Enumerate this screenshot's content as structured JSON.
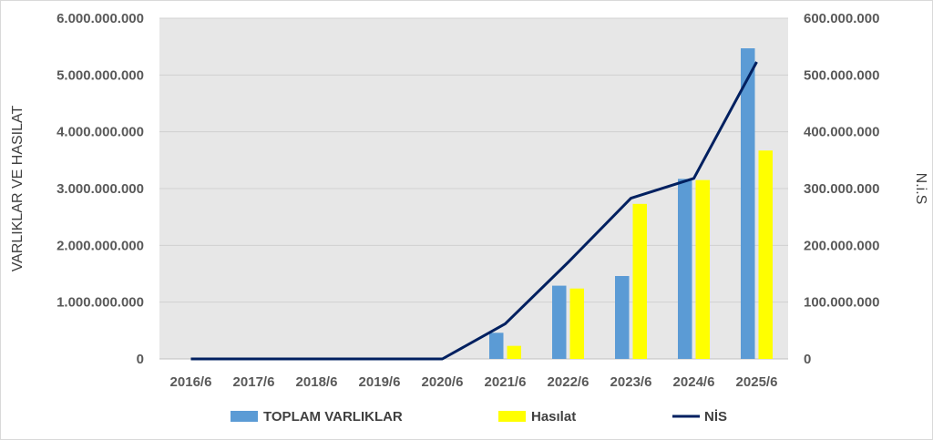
{
  "chart_data": {
    "type": "bar",
    "categories": [
      "2016/6",
      "2017/6",
      "2018/6",
      "2019/6",
      "2020/6",
      "2021/6",
      "2022/6",
      "2023/6",
      "2024/6",
      "2025/6"
    ],
    "series": [
      {
        "name": "TOPLAM VARLIKLAR",
        "type": "bar",
        "axis": "left",
        "color": "#5B9BD5",
        "values": [
          0,
          0,
          0,
          0,
          0,
          460000000,
          1290000000,
          1460000000,
          3170000000,
          5470000000
        ]
      },
      {
        "name": "Hasılat",
        "type": "bar",
        "axis": "left",
        "color": "#FFFF00",
        "values": [
          0,
          0,
          0,
          0,
          0,
          230000000,
          1240000000,
          2730000000,
          3150000000,
          3670000000
        ]
      },
      {
        "name": "NİS",
        "type": "line",
        "axis": "right",
        "color": "#002060",
        "values": [
          0,
          0,
          0,
          0,
          0,
          62000000,
          170000000,
          283000000,
          318000000,
          523000000
        ]
      }
    ],
    "ylabel": "VARLIKLAR VE HASILAT",
    "y2label": "N.i.S",
    "ylim": [
      0,
      6000000000
    ],
    "y2lim": [
      0,
      600000000
    ],
    "yticks": [
      "0",
      "1.000.000.000",
      "2.000.000.000",
      "3.000.000.000",
      "4.000.000.000",
      "5.000.000.000",
      "6.000.000.000"
    ],
    "y2ticks": [
      "0",
      "100.000.000",
      "200.000.000",
      "300.000.000",
      "400.000.000",
      "500.000.000",
      "600.000.000"
    ],
    "grid": true,
    "plot_background": "#E7E7E7",
    "legend_position": "bottom"
  }
}
